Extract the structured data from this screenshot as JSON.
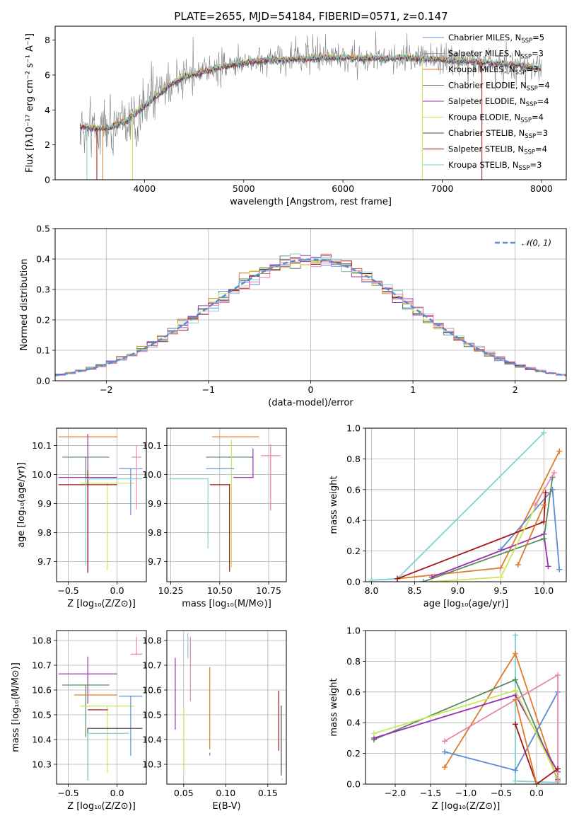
{
  "colors": {
    "chabrier_miles": "#5b8bd6",
    "salpeter_miles": "#9aa0a6",
    "kroupa_miles": "#e07b2a",
    "chabrier_elodie": "#5a8a5a",
    "salpeter_elodie": "#9b30b0",
    "kroupa_elodie": "#c8e85a",
    "chabrier_stelib": "#505050",
    "salpeter_stelib": "#a31515",
    "kroupa_stelib": "#7fd1d4",
    "pink": "#e985b6",
    "spectrum": "#808080"
  },
  "chart_data": [
    {
      "type": "line",
      "title": "PLATE=2655, MJD=54184, FIBERID=0571, z=0.147",
      "xlabel": "wavelength [Angstrom, rest frame]",
      "ylabel": "Flux [fλ10⁻¹⁷ erg cm⁻² s⁻¹ A⁻¹]",
      "xlim": [
        3100,
        8250
      ],
      "ylim": [
        0,
        8.8
      ],
      "xticks": [
        4000,
        5000,
        6000,
        7000,
        8000
      ],
      "yticks": [
        0,
        2,
        4,
        6,
        8
      ],
      "grid": false,
      "legend_position": "right",
      "legend": [
        {
          "label": "Chabrier MILES, N",
          "sub": "SSP",
          "tail": "=5",
          "color_key": "chabrier_miles"
        },
        {
          "label": "Salpeter MILES, N",
          "sub": "SSP",
          "tail": "=3",
          "color_key": "salpeter_miles"
        },
        {
          "label": "Kroupa MILES, N",
          "sub": "SSP",
          "tail": "=3",
          "color_key": "kroupa_miles"
        },
        {
          "label": "Chabrier ELODIE, N",
          "sub": "SSP",
          "tail": "=4",
          "color_key": "chabrier_elodie"
        },
        {
          "label": "Salpeter ELODIE, N",
          "sub": "SSP",
          "tail": "=4",
          "color_key": "salpeter_elodie"
        },
        {
          "label": "Kroupa ELODIE, N",
          "sub": "SSP",
          "tail": "=4",
          "color_key": "kroupa_elodie"
        },
        {
          "label": "Chabrier STELIB, N",
          "sub": "SSP",
          "tail": "=3",
          "color_key": "chabrier_stelib"
        },
        {
          "label": "Salpeter STELIB, N",
          "sub": "SSP",
          "tail": "=4",
          "color_key": "salpeter_stelib"
        },
        {
          "label": "Kroupa STELIB, N",
          "sub": "SSP",
          "tail": "=3",
          "color_key": "kroupa_stelib"
        }
      ],
      "data_envelope": {
        "x": [
          3350,
          3500,
          3650,
          3800,
          3950,
          4100,
          4250,
          4400,
          4600,
          4800,
          5000,
          5200,
          5400,
          5600,
          5800,
          6000,
          6200,
          6400,
          6600,
          6800,
          7000,
          7200,
          7400,
          7600,
          7800,
          8000
        ],
        "y": [
          3.05,
          2.95,
          3.0,
          3.3,
          4.0,
          4.7,
          5.4,
          5.9,
          6.2,
          6.5,
          6.7,
          6.85,
          6.9,
          6.95,
          7.0,
          7.0,
          6.95,
          6.95,
          7.0,
          6.95,
          6.9,
          6.8,
          6.75,
          6.65,
          6.55,
          6.4
        ]
      }
    },
    {
      "type": "line",
      "xlabel": "(data-model)/error",
      "ylabel": "Normed distribution",
      "xlim": [
        -2.5,
        2.5
      ],
      "ylim": [
        0,
        0.5
      ],
      "xticks": [
        -2,
        -1,
        0,
        1,
        2
      ],
      "yticks": [
        0.0,
        0.1,
        0.2,
        0.3,
        0.4,
        0.5
      ],
      "grid": true,
      "legend_position": "top-right",
      "legend": [
        {
          "label": "𝒩(0, 1)",
          "color_key": "chabrier_miles",
          "style": "dashed"
        }
      ],
      "histogram_bin_width": 0.1
    },
    {
      "type": "scatter",
      "xlabel": "Z [log₁₀(Z/Z⊙)]",
      "ylabel": "age  [log₁₀(age/yr)]",
      "xlim": [
        -0.62,
        0.3
      ],
      "ylim": [
        9.63,
        10.16
      ],
      "xticks": [
        -0.5,
        0.0
      ],
      "yticks": [
        9.7,
        9.8,
        9.9,
        10.0,
        10.1
      ],
      "grid": true,
      "points": [
        {
          "x": -0.3,
          "xerr": [
            0.3,
            0.3
          ],
          "y": 10.13,
          "yerr": [
            0.0,
            0.0
          ],
          "color_key": "kroupa_miles"
        },
        {
          "x": -0.32,
          "xerr": [
            0.24,
            0.24
          ],
          "y": 10.06,
          "yerr": [
            0.16,
            0.0
          ],
          "color_key": "chabrier_elodie"
        },
        {
          "x": -0.3,
          "xerr": [
            0.3,
            0.3
          ],
          "y": 9.99,
          "yerr": [
            0.33,
            0.15
          ],
          "color_key": "salpeter_elodie"
        },
        {
          "x": -0.1,
          "xerr": [
            0.28,
            0.28
          ],
          "y": 9.97,
          "yerr": [
            0.3,
            0.0
          ],
          "color_key": "kroupa_elodie"
        },
        {
          "x": -0.3,
          "xerr": [
            0.3,
            0.3
          ],
          "y": 9.965,
          "yerr": [
            0.3,
            0.05
          ],
          "color_key": "salpeter_stelib"
        },
        {
          "x": 0.14,
          "xerr": [
            0.12,
            0.12
          ],
          "y": 10.02,
          "yerr": [
            0.16,
            0.0
          ],
          "color_key": "chabrier_miles"
        },
        {
          "x": 0.2,
          "xerr": [
            0.05,
            0.05
          ],
          "y": 10.06,
          "yerr": [
            0.18,
            0.04
          ],
          "color_key": "pink"
        },
        {
          "x": -0.32,
          "xerr": [
            0.0,
            0.58
          ],
          "y": 9.985,
          "yerr": [
            0.3,
            0.0
          ],
          "color_key": "kroupa_stelib"
        }
      ]
    },
    {
      "type": "scatter",
      "xlabel": "mass [log₁₀(M/M⊙)]",
      "ylabel": "",
      "xlim": [
        10.23,
        10.84
      ],
      "ylim": [
        9.63,
        10.16
      ],
      "xticks": [
        10.25,
        10.5,
        10.75
      ],
      "yticks": [
        9.7,
        9.8,
        9.9,
        10.0,
        10.1
      ],
      "grid": true,
      "points": [
        {
          "x": 10.58,
          "xerr": [
            0.12,
            0.12
          ],
          "y": 10.13,
          "yerr": [
            0.0,
            0.0
          ],
          "color_key": "kroupa_miles"
        },
        {
          "x": 10.55,
          "xerr": [
            0.12,
            0.12
          ],
          "y": 10.06,
          "yerr": [
            0.0,
            0.0
          ],
          "color_key": "chabrier_elodie"
        },
        {
          "x": 10.67,
          "xerr": [
            0.1,
            0.0
          ],
          "y": 9.99,
          "yerr": [
            0.0,
            0.1
          ],
          "color_key": "salpeter_elodie"
        },
        {
          "x": 10.56,
          "xerr": [
            0.0,
            0.0
          ],
          "y": 10.0,
          "yerr": [
            0.32,
            0.12
          ],
          "color_key": "kroupa_elodie"
        },
        {
          "x": 10.55,
          "xerr": [
            0.1,
            0.0
          ],
          "y": 9.965,
          "yerr": [
            0.3,
            0.0
          ],
          "color_key": "salpeter_stelib"
        },
        {
          "x": 10.57,
          "xerr": [
            0.14,
            0.0
          ],
          "y": 10.02,
          "yerr": [
            0.0,
            0.0
          ],
          "color_key": "chabrier_miles"
        },
        {
          "x": 10.76,
          "xerr": [
            0.05,
            0.05
          ],
          "y": 10.065,
          "yerr": [
            0.19,
            0.04
          ],
          "color_key": "pink"
        },
        {
          "x": 10.44,
          "xerr": [
            0.2,
            0.0
          ],
          "y": 9.985,
          "yerr": [
            0.24,
            0.0
          ],
          "color_key": "kroupa_stelib"
        }
      ]
    },
    {
      "type": "line",
      "xlabel": "age  [log₁₀(age/yr)]",
      "ylabel": "mass weight",
      "xlim": [
        7.93,
        10.26
      ],
      "ylim": [
        0,
        1
      ],
      "xticks": [
        8.0,
        8.5,
        9.0,
        9.5,
        10.0
      ],
      "yticks": [
        0.0,
        0.2,
        0.4,
        0.6,
        0.8,
        1.0
      ],
      "grid": true,
      "series": [
        {
          "color_key": "kroupa_stelib",
          "x": [
            8.0,
            8.3,
            10.0
          ],
          "y": [
            0.01,
            0.02,
            0.97
          ]
        },
        {
          "color_key": "kroupa_miles",
          "x": [
            8.3,
            9.5,
            10.18
          ],
          "y": [
            0.02,
            0.09,
            0.85
          ]
        },
        {
          "color_key": "chabrier_miles",
          "x": [
            9.5,
            10.1,
            10.18
          ],
          "y": [
            0.21,
            0.6,
            0.08
          ]
        },
        {
          "color_key": "salpeter_stelib",
          "x": [
            8.3,
            10.0,
            10.02
          ],
          "y": [
            0.02,
            0.39,
            0.58
          ]
        },
        {
          "color_key": "salpeter_elodie",
          "x": [
            8.7,
            10.0,
            10.05
          ],
          "y": [
            0.03,
            0.31,
            0.1
          ]
        },
        {
          "color_key": "chabrier_elodie",
          "x": [
            8.6,
            10.0,
            10.1
          ],
          "y": [
            0.0,
            0.28,
            0.68
          ]
        },
        {
          "color_key": "kroupa_elodie",
          "x": [
            8.7,
            9.5,
            10.0
          ],
          "y": [
            0.0,
            0.03,
            0.6
          ]
        },
        {
          "color_key": "pink",
          "x": [
            9.9,
            10.12
          ],
          "y": [
            0.5,
            0.71
          ]
        },
        {
          "color_key": "kroupa_miles",
          "x": [
            9.7,
            10.0
          ],
          "y": [
            0.11,
            0.5
          ]
        }
      ]
    },
    {
      "type": "scatter",
      "xlabel": "Z [log₁₀(Z/Z⊙)]",
      "ylabel": "mass [log₁₀(M/M⊙)]",
      "xlim": [
        -0.62,
        0.3
      ],
      "ylim": [
        10.22,
        10.84
      ],
      "xticks": [
        -0.5,
        0.0
      ],
      "yticks": [
        10.3,
        10.4,
        10.5,
        10.6,
        10.7,
        10.8
      ],
      "grid": true,
      "points": [
        {
          "x": -0.3,
          "xerr": [
            0.3,
            0.3
          ],
          "y": 10.665,
          "yerr": [
            0.12,
            0.07
          ],
          "color_key": "salpeter_elodie"
        },
        {
          "x": -0.32,
          "xerr": [
            0.24,
            0.24
          ],
          "y": 10.62,
          "yerr": [
            0.21,
            0.0
          ],
          "color_key": "chabrier_elodie"
        },
        {
          "x": -0.22,
          "xerr": [
            0.22,
            0.22
          ],
          "y": 10.58,
          "yerr": [
            0.0,
            0.0
          ],
          "color_key": "kroupa_miles"
        },
        {
          "x": -0.1,
          "xerr": [
            0.28,
            0.28
          ],
          "y": 10.535,
          "yerr": [
            0.27,
            0.0
          ],
          "color_key": "kroupa_elodie"
        },
        {
          "x": -0.1,
          "xerr": [
            0.2,
            0.0
          ],
          "y": 10.52,
          "yerr": [
            0.0,
            0.0
          ],
          "color_key": "salpeter_stelib"
        },
        {
          "x": 0.2,
          "xerr": [
            0.06,
            0.06
          ],
          "y": 10.745,
          "yerr": [
            0.0,
            0.07
          ],
          "color_key": "pink"
        },
        {
          "x": 0.14,
          "xerr": [
            0.12,
            0.12
          ],
          "y": 10.575,
          "yerr": [
            0.24,
            0.0
          ],
          "color_key": "chabrier_miles"
        },
        {
          "x": -0.3,
          "xerr": [
            0.0,
            0.56
          ],
          "y": 10.445,
          "yerr": [
            0.21,
            0.0
          ],
          "color_key": "chabrier_stelib"
        },
        {
          "x": -0.3,
          "xerr": [
            0.0,
            0.42
          ],
          "y": 10.425,
          "yerr": [
            0.19,
            0.0
          ],
          "color_key": "kroupa_stelib"
        }
      ]
    },
    {
      "type": "scatter",
      "xlabel": "E(B-V)",
      "ylabel": "",
      "xlim": [
        0.03,
        0.172
      ],
      "ylim": [
        10.22,
        10.84
      ],
      "xticks": [
        0.05,
        0.1,
        0.15
      ],
      "yticks": [
        10.3,
        10.4,
        10.5,
        10.6,
        10.7,
        10.8
      ],
      "grid": true,
      "points": [
        {
          "x": 0.04,
          "yerr": [
            0.13,
            0.16
          ],
          "y": 10.57,
          "color_key": "salpeter_elodie"
        },
        {
          "x": 0.05,
          "yerr": [
            0.26,
            0.0
          ],
          "y": 10.53,
          "color_key": "kroupa_elodie"
        },
        {
          "x": 0.055,
          "yerr": [
            0.0,
            0.1
          ],
          "y": 10.73,
          "color_key": "kroupa_stelib"
        },
        {
          "x": 0.058,
          "yerr": [
            0.2,
            0.06
          ],
          "y": 10.755,
          "color_key": "pink"
        },
        {
          "x": 0.081,
          "yerr": [
            0.33,
            0.0
          ],
          "y": 10.69,
          "color_key": "kroupa_miles"
        },
        {
          "x": 0.081,
          "yerr": [
            0.01,
            0.0
          ],
          "y": 10.345,
          "color_key": "chabrier_miles"
        },
        {
          "x": 0.163,
          "yerr": [
            0.24,
            0.0
          ],
          "y": 10.595,
          "color_key": "salpeter_stelib"
        },
        {
          "x": 0.166,
          "yerr": [
            0.28,
            0.0
          ],
          "y": 10.535,
          "color_key": "chabrier_stelib"
        },
        {
          "x": 0.167,
          "yerr": [
            0.0,
            0.0
          ],
          "y": 10.24,
          "color_key": "kroupa_stelib"
        }
      ]
    },
    {
      "type": "line",
      "xlabel": "Z [log₁₀(Z/Z⊙)]",
      "ylabel": "mass weight",
      "xlim": [
        -2.42,
        0.42
      ],
      "ylim": [
        0,
        1
      ],
      "xticks": [
        -2.0,
        -1.5,
        -1.0,
        -0.5,
        0.0
      ],
      "yticks": [
        0.0,
        0.2,
        0.4,
        0.6,
        0.8,
        1.0
      ],
      "grid": true,
      "series": [
        {
          "color_key": "kroupa_stelib",
          "x": [
            -0.3,
            -0.3,
            0.3
          ],
          "y": [
            0.97,
            0.02,
            0.01
          ]
        },
        {
          "color_key": "kroupa_miles",
          "x": [
            -1.3,
            -0.3,
            0.3
          ],
          "y": [
            0.11,
            0.85,
            0.02
          ]
        },
        {
          "color_key": "chabrier_miles",
          "x": [
            -1.3,
            -0.3,
            0.3
          ],
          "y": [
            0.21,
            0.09,
            0.6
          ]
        },
        {
          "color_key": "chabrier_elodie",
          "x": [
            -2.3,
            -0.3,
            0.3
          ],
          "y": [
            0.29,
            0.68,
            0.03
          ]
        },
        {
          "color_key": "salpeter_elodie",
          "x": [
            -2.3,
            -0.3,
            0.3
          ],
          "y": [
            0.3,
            0.58,
            0.08
          ]
        },
        {
          "color_key": "kroupa_elodie",
          "x": [
            -2.3,
            -0.3,
            0.3
          ],
          "y": [
            0.33,
            0.61,
            0.04
          ]
        },
        {
          "color_key": "pink",
          "x": [
            -1.3,
            0.3,
            0.3
          ],
          "y": [
            0.28,
            0.71,
            0.02
          ]
        },
        {
          "color_key": "salpeter_stelib",
          "x": [
            -0.3,
            0.0,
            0.3
          ],
          "y": [
            0.39,
            0.0,
            0.1
          ]
        },
        {
          "color_key": "kroupa_miles",
          "x": [
            -0.3,
            0.0
          ],
          "y": [
            0.55,
            0.0
          ]
        }
      ]
    }
  ]
}
